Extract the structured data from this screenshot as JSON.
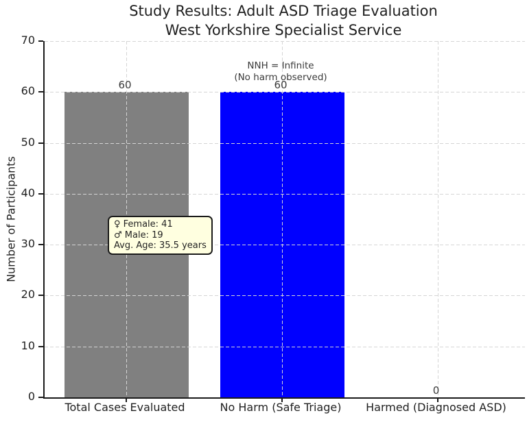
{
  "chart_data": {
    "type": "bar",
    "title": "Study Results: Adult ASD Triage Evaluation",
    "subtitle": "West Yorkshire Specialist Service",
    "ylabel": "Number of Participants",
    "xlabel": "",
    "categories": [
      "Total Cases Evaluated",
      "No Harm (Safe Triage)",
      "Harmed (Diagnosed ASD)"
    ],
    "values": [
      60,
      60,
      0
    ],
    "value_labels": [
      "60",
      "60",
      "0"
    ],
    "bar_colors": [
      "#808080",
      "#0000ff",
      null
    ],
    "ylim": [
      0,
      70
    ],
    "yticks": [
      0,
      10,
      20,
      30,
      40,
      50,
      60,
      70
    ],
    "grid": true,
    "grid_color": "#d5d5d5",
    "legend": "none",
    "annotation": {
      "line1": "NNH = Infinite",
      "line2": "(No harm observed)"
    },
    "tooltip": {
      "lines": [
        "♀ Female: 41",
        "♂ Male: 19",
        "Avg. Age: 35.5 years"
      ],
      "background": "#ffffe0"
    }
  }
}
